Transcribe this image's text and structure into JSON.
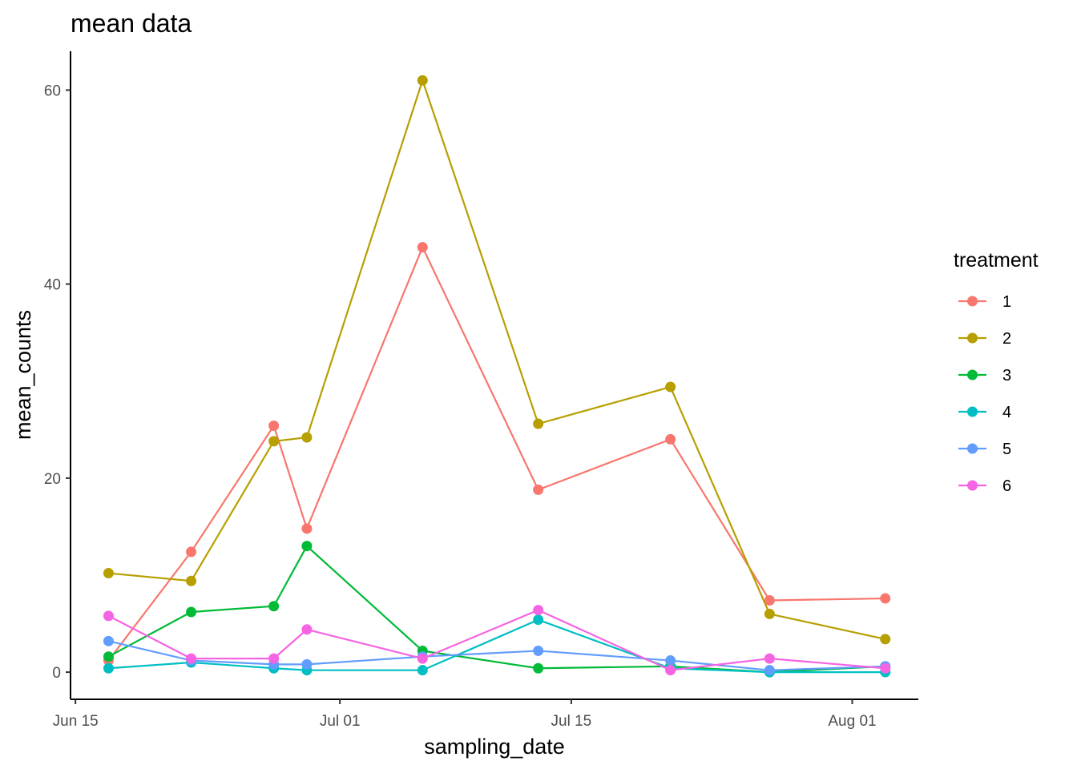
{
  "chart_data": {
    "type": "line",
    "title": "mean data",
    "xlabel": "sampling_date",
    "ylabel": "mean_counts",
    "x": [
      "2020-06-17",
      "2020-06-22",
      "2020-06-27",
      "2020-06-29",
      "2020-07-06",
      "2020-07-13",
      "2020-07-21",
      "2020-07-27",
      "2020-08-03"
    ],
    "x_ticks": [
      "Jun 15",
      "Jul 01",
      "Jul 15",
      "Aug 01"
    ],
    "y_ticks": [
      "0",
      "20",
      "40",
      "60"
    ],
    "ylim": [
      -2.8,
      64
    ],
    "xlim": [
      "2020-06-14.7",
      "2020-08-05"
    ],
    "grid": false,
    "legend": {
      "title": "treatment",
      "position": "right"
    },
    "series": [
      {
        "name": "1",
        "color": "#F8766D",
        "values": [
          1.2,
          12.4,
          25.4,
          14.8,
          43.8,
          18.8,
          24.0,
          7.4,
          7.6
        ]
      },
      {
        "name": "2",
        "color": "#B79F00",
        "values": [
          10.2,
          9.4,
          23.8,
          24.2,
          61.0,
          25.6,
          29.4,
          6.0,
          3.4
        ]
      },
      {
        "name": "3",
        "color": "#00BA38",
        "values": [
          1.6,
          6.2,
          6.8,
          13.0,
          2.2,
          0.4,
          0.6,
          0.0,
          0.6
        ]
      },
      {
        "name": "4",
        "color": "#00BFC4",
        "values": [
          0.4,
          1.0,
          0.4,
          0.2,
          0.2,
          5.4,
          0.4,
          0.0,
          0.0
        ]
      },
      {
        "name": "5",
        "color": "#619CFF",
        "values": [
          3.2,
          1.2,
          0.8,
          0.8,
          1.6,
          2.2,
          1.2,
          0.2,
          0.6
        ]
      },
      {
        "name": "6",
        "color": "#F564E3",
        "values": [
          5.8,
          1.4,
          1.4,
          4.4,
          1.4,
          6.4,
          0.2,
          1.4,
          0.4
        ]
      }
    ]
  }
}
